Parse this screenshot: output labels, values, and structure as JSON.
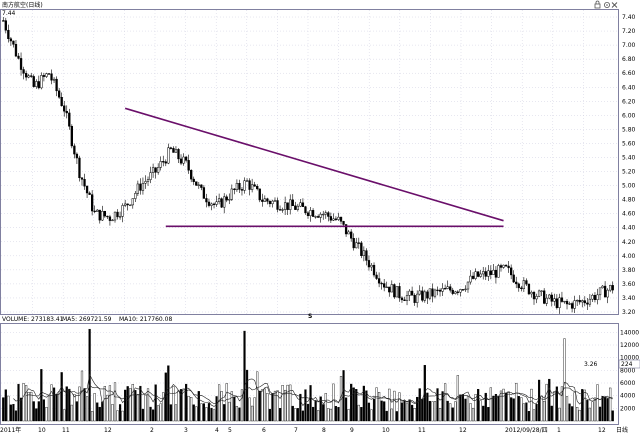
{
  "header": {
    "title": "南方航空(日线)",
    "corner_icons": [
      "lock-icon",
      "gear-icon",
      "close-icon"
    ]
  },
  "annotations": {
    "high_label": "7.44",
    "low_label": "3.26",
    "marker": "S"
  },
  "volume_header": {
    "volume": "VOLUME: 273183.41",
    "ma5": "MA5: 269721.59",
    "ma10": "MA10: 217760.08"
  },
  "x_axis_labels": [
    "2011年",
    "10",
    "11",
    "12",
    "2",
    "3",
    "4",
    "5",
    "6",
    "7",
    "8",
    "9",
    "10",
    "11",
    "12",
    "2012/09/28/四",
    "1",
    "12",
    "日线"
  ],
  "right_tag": "224",
  "colors": {
    "up": "#000000",
    "down": "#000000",
    "trendline": "#6a0f6a",
    "grid": "#cfcfe0",
    "ma5": "#202020",
    "ma10": "#202020"
  },
  "chart_data": [
    {
      "type": "candlestick",
      "title": "南方航空(日线)",
      "ylim": [
        3.2,
        7.5
      ],
      "yticks": [
        3.2,
        3.4,
        3.6,
        3.8,
        4.0,
        4.2,
        4.4,
        4.6,
        4.8,
        5.0,
        5.2,
        5.4,
        5.6,
        5.8,
        6.0,
        6.2,
        6.4,
        6.6,
        6.8,
        7.0,
        7.2,
        7.4
      ],
      "grid": true,
      "price_path": {
        "x_index": [
          0,
          6,
          12,
          18,
          24,
          30,
          36,
          42,
          48,
          54,
          60,
          66,
          72,
          78,
          84,
          90,
          96,
          102,
          108,
          114,
          120,
          126,
          132,
          138,
          144,
          150,
          156,
          162,
          168,
          174,
          180,
          186,
          192,
          198,
          204,
          210,
          216,
          222,
          228,
          234,
          240
        ],
        "close": [
          7.35,
          6.8,
          6.4,
          6.6,
          6.1,
          5.2,
          4.6,
          4.55,
          4.7,
          5.0,
          5.2,
          5.5,
          5.3,
          4.9,
          4.7,
          4.9,
          5.05,
          4.8,
          4.75,
          4.7,
          4.65,
          4.6,
          4.5,
          4.2,
          3.9,
          3.6,
          3.45,
          3.4,
          3.45,
          3.5,
          3.55,
          3.7,
          3.75,
          3.8,
          3.6,
          3.45,
          3.35,
          3.3,
          3.35,
          3.45,
          3.55
        ]
      },
      "high_value": 7.44,
      "low_value": 3.26,
      "trendlines": [
        {
          "name": "",
          "from": {
            "x_index": 48,
            "y": 6.1
          },
          "to": {
            "x_index": 197,
            "y": 4.5
          }
        },
        {
          "name": "",
          "from": {
            "x_index": 64,
            "y": 4.42
          },
          "to": {
            "x_index": 197,
            "y": 4.42
          }
        }
      ]
    },
    {
      "type": "bar",
      "title": "VOLUME",
      "ylim": [
        0,
        15000
      ],
      "yticks": [
        2000,
        4000,
        6000,
        8000,
        10000,
        12000,
        14000
      ],
      "series": [
        {
          "name": "VOLUME",
          "peaks": [
            {
              "x_index": 34,
              "value": 14500
            },
            {
              "x_index": 95,
              "value": 14200
            },
            {
              "x_index": 221,
              "value": 13000
            }
          ]
        },
        {
          "name": "MA5",
          "value": 269721.59
        },
        {
          "name": "MA10",
          "value": 217760.08
        }
      ]
    }
  ]
}
